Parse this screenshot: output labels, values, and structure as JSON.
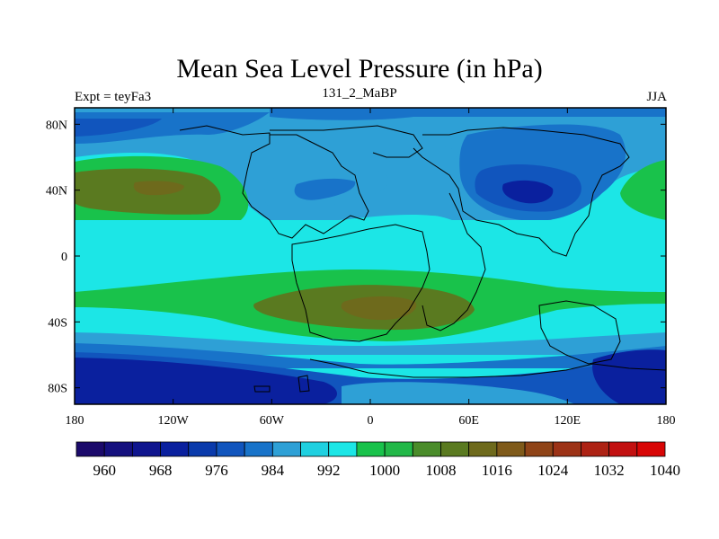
{
  "title": "Mean Sea Level Pressure (in hPa)",
  "left_label": "Expt = teyFa3",
  "center_label": "131_2_MaBP",
  "right_label": "JJA",
  "map": {
    "lon_range": [
      -180,
      180
    ],
    "lat_range": [
      -90,
      90
    ],
    "x_ticks": [
      "180",
      "120W",
      "60W",
      "0",
      "60E",
      "120E",
      "180"
    ],
    "y_ticks": [
      "80N",
      "40N",
      "0",
      "40S",
      "80S"
    ]
  },
  "colorbar": {
    "colors": [
      "#1b0a6b",
      "#15107e",
      "#0f158e",
      "#0a209e",
      "#0a3aab",
      "#1155bd",
      "#1873c9",
      "#2ea0d6",
      "#1fd0e0",
      "#1ce6e6",
      "#19c24b",
      "#22b848",
      "#4a8c2a",
      "#5a7a20",
      "#6e6a1c",
      "#7f5a1a",
      "#8f4418",
      "#9c3216",
      "#ad2214",
      "#c21010",
      "#d80606"
    ],
    "labels": [
      "960",
      "968",
      "976",
      "984",
      "992",
      "1000",
      "1008",
      "1016",
      "1024",
      "1032",
      "1040"
    ]
  },
  "colors": {
    "ocean_bg": "#1ce6e6",
    "coast": "#000000"
  }
}
